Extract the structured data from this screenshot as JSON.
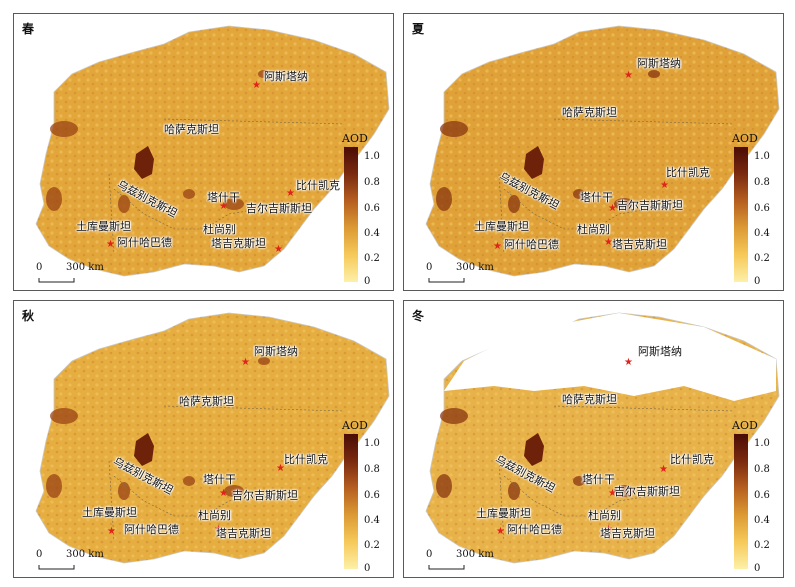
{
  "panels": [
    {
      "season": "春"
    },
    {
      "season": "夏"
    },
    {
      "season": "秋"
    },
    {
      "season": "冬"
    }
  ],
  "cities": {
    "astana": "阿斯塔纳",
    "kazakhstan": "哈萨克斯坦",
    "bishkek": "比什凯克",
    "uzbekistan": "乌兹别克斯坦",
    "tashkent": "塔什干",
    "kyrgyzstan": "吉尔吉斯斯坦",
    "turkmenistan": "土库曼斯坦",
    "dushanbe": "杜尚别",
    "ashgabat": "阿什哈巴德",
    "tajikistan": "塔吉克斯坦"
  },
  "legend": {
    "title": "AOD",
    "ticks": [
      "1.0",
      "0.8",
      "0.6",
      "0.4",
      "0.2",
      "0"
    ],
    "colors": [
      "#fdf0a8",
      "#f6c95a",
      "#dc9a34",
      "#b65f20",
      "#7a2a0f",
      "#4a0c05"
    ]
  },
  "scale_bar": {
    "zero": "0",
    "distance": "300 km"
  },
  "colors": {
    "map_base": "#e3a63b",
    "map_light": "#f0c45c",
    "map_dark": "#8a3a12",
    "star": "#e0241b",
    "border": "#5a5a5a"
  }
}
